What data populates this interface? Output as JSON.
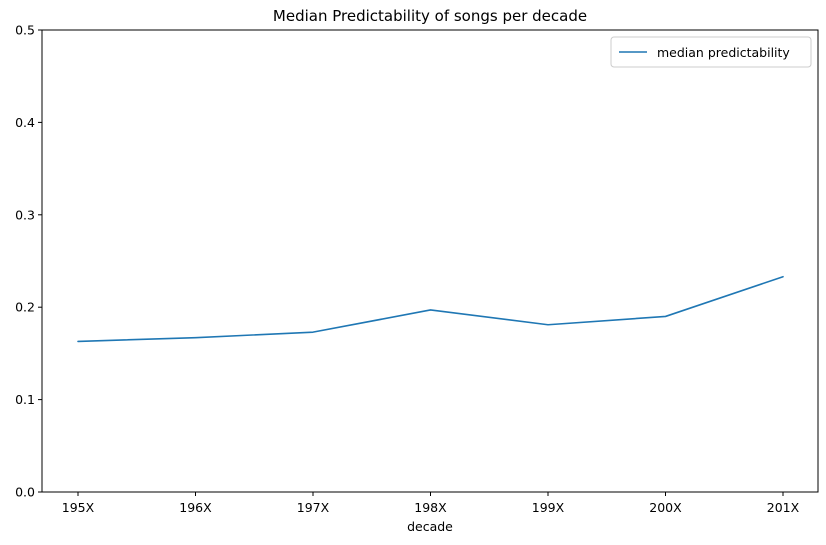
{
  "chart_data": {
    "type": "line",
    "title": "Median Predictability of songs per decade",
    "xlabel": "decade",
    "ylabel": "",
    "categories": [
      "195X",
      "196X",
      "197X",
      "198X",
      "199X",
      "200X",
      "201X"
    ],
    "series": [
      {
        "name": "median predictability",
        "color": "#1f77b4",
        "values": [
          0.163,
          0.167,
          0.173,
          0.197,
          0.181,
          0.19,
          0.233
        ]
      }
    ],
    "ylim": [
      0,
      0.5
    ],
    "yticks": [
      "0.0",
      "0.1",
      "0.2",
      "0.3",
      "0.4",
      "0.5"
    ],
    "grid": false,
    "legend_position": "top-right"
  }
}
